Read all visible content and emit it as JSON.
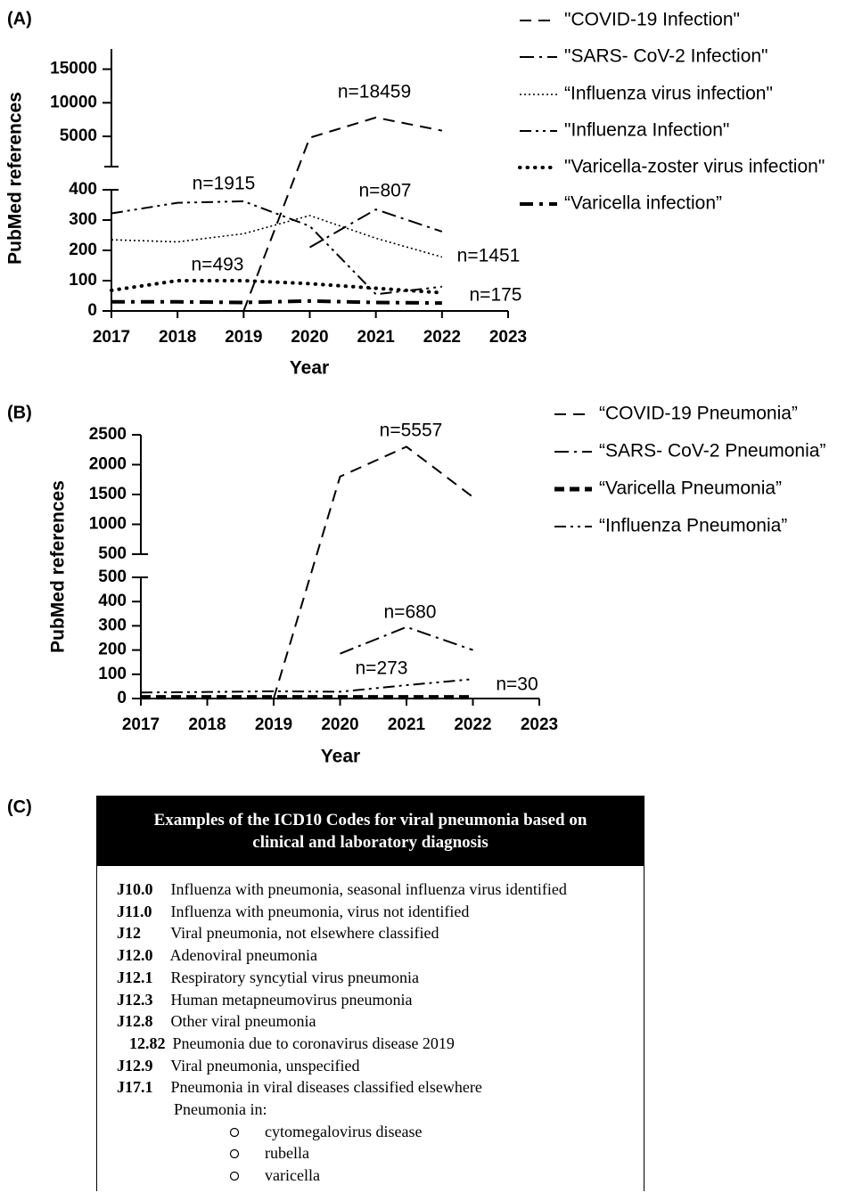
{
  "chart_data": [
    {
      "type": "line",
      "panel_label": "(A)",
      "x_label": "Year",
      "y_label": "PubMed references",
      "x": [
        2017,
        2018,
        2019,
        2020,
        2021,
        2022
      ],
      "xlim": [
        2017,
        2023
      ],
      "xticks": [
        2017,
        2018,
        2019,
        2020,
        2021,
        2022,
        2023
      ],
      "y_axes": [
        {
          "ylim": [
            0,
            400
          ],
          "yticks": [
            0,
            100,
            200,
            300,
            400
          ]
        },
        {
          "ylim": [
            500,
            18000
          ],
          "yticks": [
            5000,
            10000,
            15000
          ]
        }
      ],
      "series": [
        {
          "name": "\"COVID-19  Infection\"",
          "color": "#000",
          "style": "dashed",
          "values": [
            null,
            null,
            0,
            4800,
            7800,
            5850
          ]
        },
        {
          "name": "\"SARS- CoV-2 Infection\"",
          "color": "#000",
          "style": "dash-dot",
          "values": [
            null,
            null,
            null,
            210,
            335,
            262
          ]
        },
        {
          "name": "“Influenza virus infection\"",
          "color": "#000",
          "style": "dotted",
          "values": [
            235,
            228,
            255,
            315,
            240,
            178
          ]
        },
        {
          "name": "\"Influenza Infection\"",
          "color": "#000",
          "style": "dash-dot-dot",
          "values": [
            322,
            357,
            362,
            280,
            55,
            80
          ]
        },
        {
          "name": "\"Varicella-zoster virus infection\"",
          "color": "#000",
          "style": "thick-dotted",
          "values": [
            68,
            100,
            100,
            90,
            75,
            60
          ]
        },
        {
          "name": "“Varicella infection”",
          "color": "#000",
          "style": "thick-dash-dot",
          "values": [
            30,
            30,
            28,
            33,
            28,
            26
          ]
        }
      ],
      "annotations": [
        "n=18459",
        "n=1915",
        "n=807",
        "n=493",
        "n=1451",
        "n=175"
      ]
    },
    {
      "type": "line",
      "panel_label": "(B)",
      "x_label": "Year",
      "y_label": "PubMed references",
      "x": [
        2017,
        2018,
        2019,
        2020,
        2021,
        2022
      ],
      "xlim": [
        2017,
        2023
      ],
      "xticks": [
        2017,
        2018,
        2019,
        2020,
        2021,
        2022,
        2023
      ],
      "y_axes": [
        {
          "ylim": [
            0,
            500
          ],
          "yticks": [
            0,
            100,
            200,
            300,
            400,
            500
          ]
        },
        {
          "ylim": [
            500,
            2500
          ],
          "yticks": [
            500,
            1000,
            1500,
            2000,
            2500
          ]
        }
      ],
      "series": [
        {
          "name": "“COVID-19 Pneumonia”",
          "color": "#000",
          "style": "dashed",
          "values": [
            null,
            null,
            0,
            1800,
            2300,
            1457
          ]
        },
        {
          "name": "“SARS- CoV-2 Pneumonia”",
          "color": "#000",
          "style": "dash-dot",
          "values": [
            null,
            null,
            null,
            185,
            295,
            200
          ]
        },
        {
          "name": "“Varicella Pneumonia”",
          "color": "#000",
          "style": "thick-dashed",
          "values": [
            5,
            5,
            5,
            5,
            5,
            5
          ]
        },
        {
          "name": "“Influenza Pneumonia”",
          "color": "#000",
          "style": "dash-dot-dot",
          "values": [
            25,
            27,
            30,
            28,
            55,
            80
          ]
        }
      ],
      "annotations": [
        "n=5557",
        "n=680",
        "n=273",
        "n=30"
      ]
    }
  ],
  "panel_c": {
    "label": "(C)",
    "title": "Examples of the ICD10 Codes for viral pneumonia based on clinical and laboratory diagnosis",
    "rows": [
      {
        "code": "J10.0",
        "text": "Influenza with pneumonia, seasonal influenza virus identified"
      },
      {
        "code": "J11.0",
        "text": "Influenza with pneumonia, virus not identified"
      },
      {
        "code": "J12",
        "text": "Viral pneumonia, not elsewhere classified"
      },
      {
        "code": "J12.0",
        "text": "Adenoviral pneumonia"
      },
      {
        "code": "J12.1",
        "text": "Respiratory syncytial virus pneumonia"
      },
      {
        "code": "J12.3",
        "text": "Human metapneumovirus pneumonia"
      },
      {
        "code": "J12.8",
        "text": "Other viral pneumonia"
      },
      {
        "code": "12.82",
        "text": "Pneumonia due to coronavirus disease 2019",
        "indent": true
      },
      {
        "code": "J12.9",
        "text": "Viral pneumonia, unspecified"
      },
      {
        "code": "J17.1",
        "text": "Pneumonia in viral diseases classified elsewhere"
      }
    ],
    "sub_heading": "Pneumonia in:",
    "items": [
      "cytomegalovirus disease",
      "rubella",
      "varicella"
    ]
  }
}
